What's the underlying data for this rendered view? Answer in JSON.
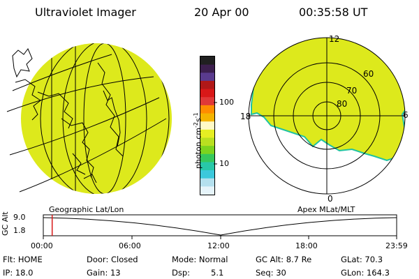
{
  "header": {
    "instrument": "Ultraviolet Imager",
    "date": "20 Apr 00",
    "time": "00:35:58 UT"
  },
  "colorbar": {
    "label_prefix": "photon cm",
    "label_exp1": "-2",
    "label_mid": "s",
    "label_exp2": "-1",
    "ticks": [
      "100",
      "10"
    ],
    "colors": [
      "#202020",
      "#3c1f4e",
      "#5a3b8e",
      "#b01818",
      "#d81818",
      "#e03838",
      "#ff8c00",
      "#f4b400",
      "#fff9c6",
      "#e6ee23",
      "#b9e020",
      "#7cd41e",
      "#36c85c",
      "#28c8a8",
      "#3cc8dc",
      "#b4e0ee",
      "#e6f4fa"
    ]
  },
  "polar_plot": {
    "mlt_labels": [
      "12",
      "18",
      "6",
      "0"
    ],
    "lat_labels": [
      "60",
      "70",
      "80"
    ],
    "fill_color": "#dde91c",
    "edge_color": "#1fc3a0"
  },
  "geo_globe": {
    "fill_color": "#dde91c"
  },
  "timeline": {
    "left_label": "Geographic Lat/Lon",
    "right_label": "Apex MLat/MLT",
    "axis_label": "GC Alt",
    "y_ticks": [
      "9.0",
      "1.8"
    ],
    "x_ticks": [
      "00:00",
      "06:00",
      "12:00",
      "18:00",
      "23:59"
    ],
    "current_time_fraction": 0.025,
    "marker_color": "#d81818"
  },
  "status": {
    "flt": "Flt: HOME",
    "ip": "IP: 18.0",
    "door": "Door: Closed",
    "gain": "Gain: 13",
    "mode": "Mode: Normal",
    "dsp_label": "Dsp:",
    "dsp_value": "5.1",
    "gc_alt": "GC Alt: 8.7 Re",
    "seq": "Seq: 30",
    "glat": "GLat: 70.3",
    "glon": "GLon: 164.3"
  }
}
